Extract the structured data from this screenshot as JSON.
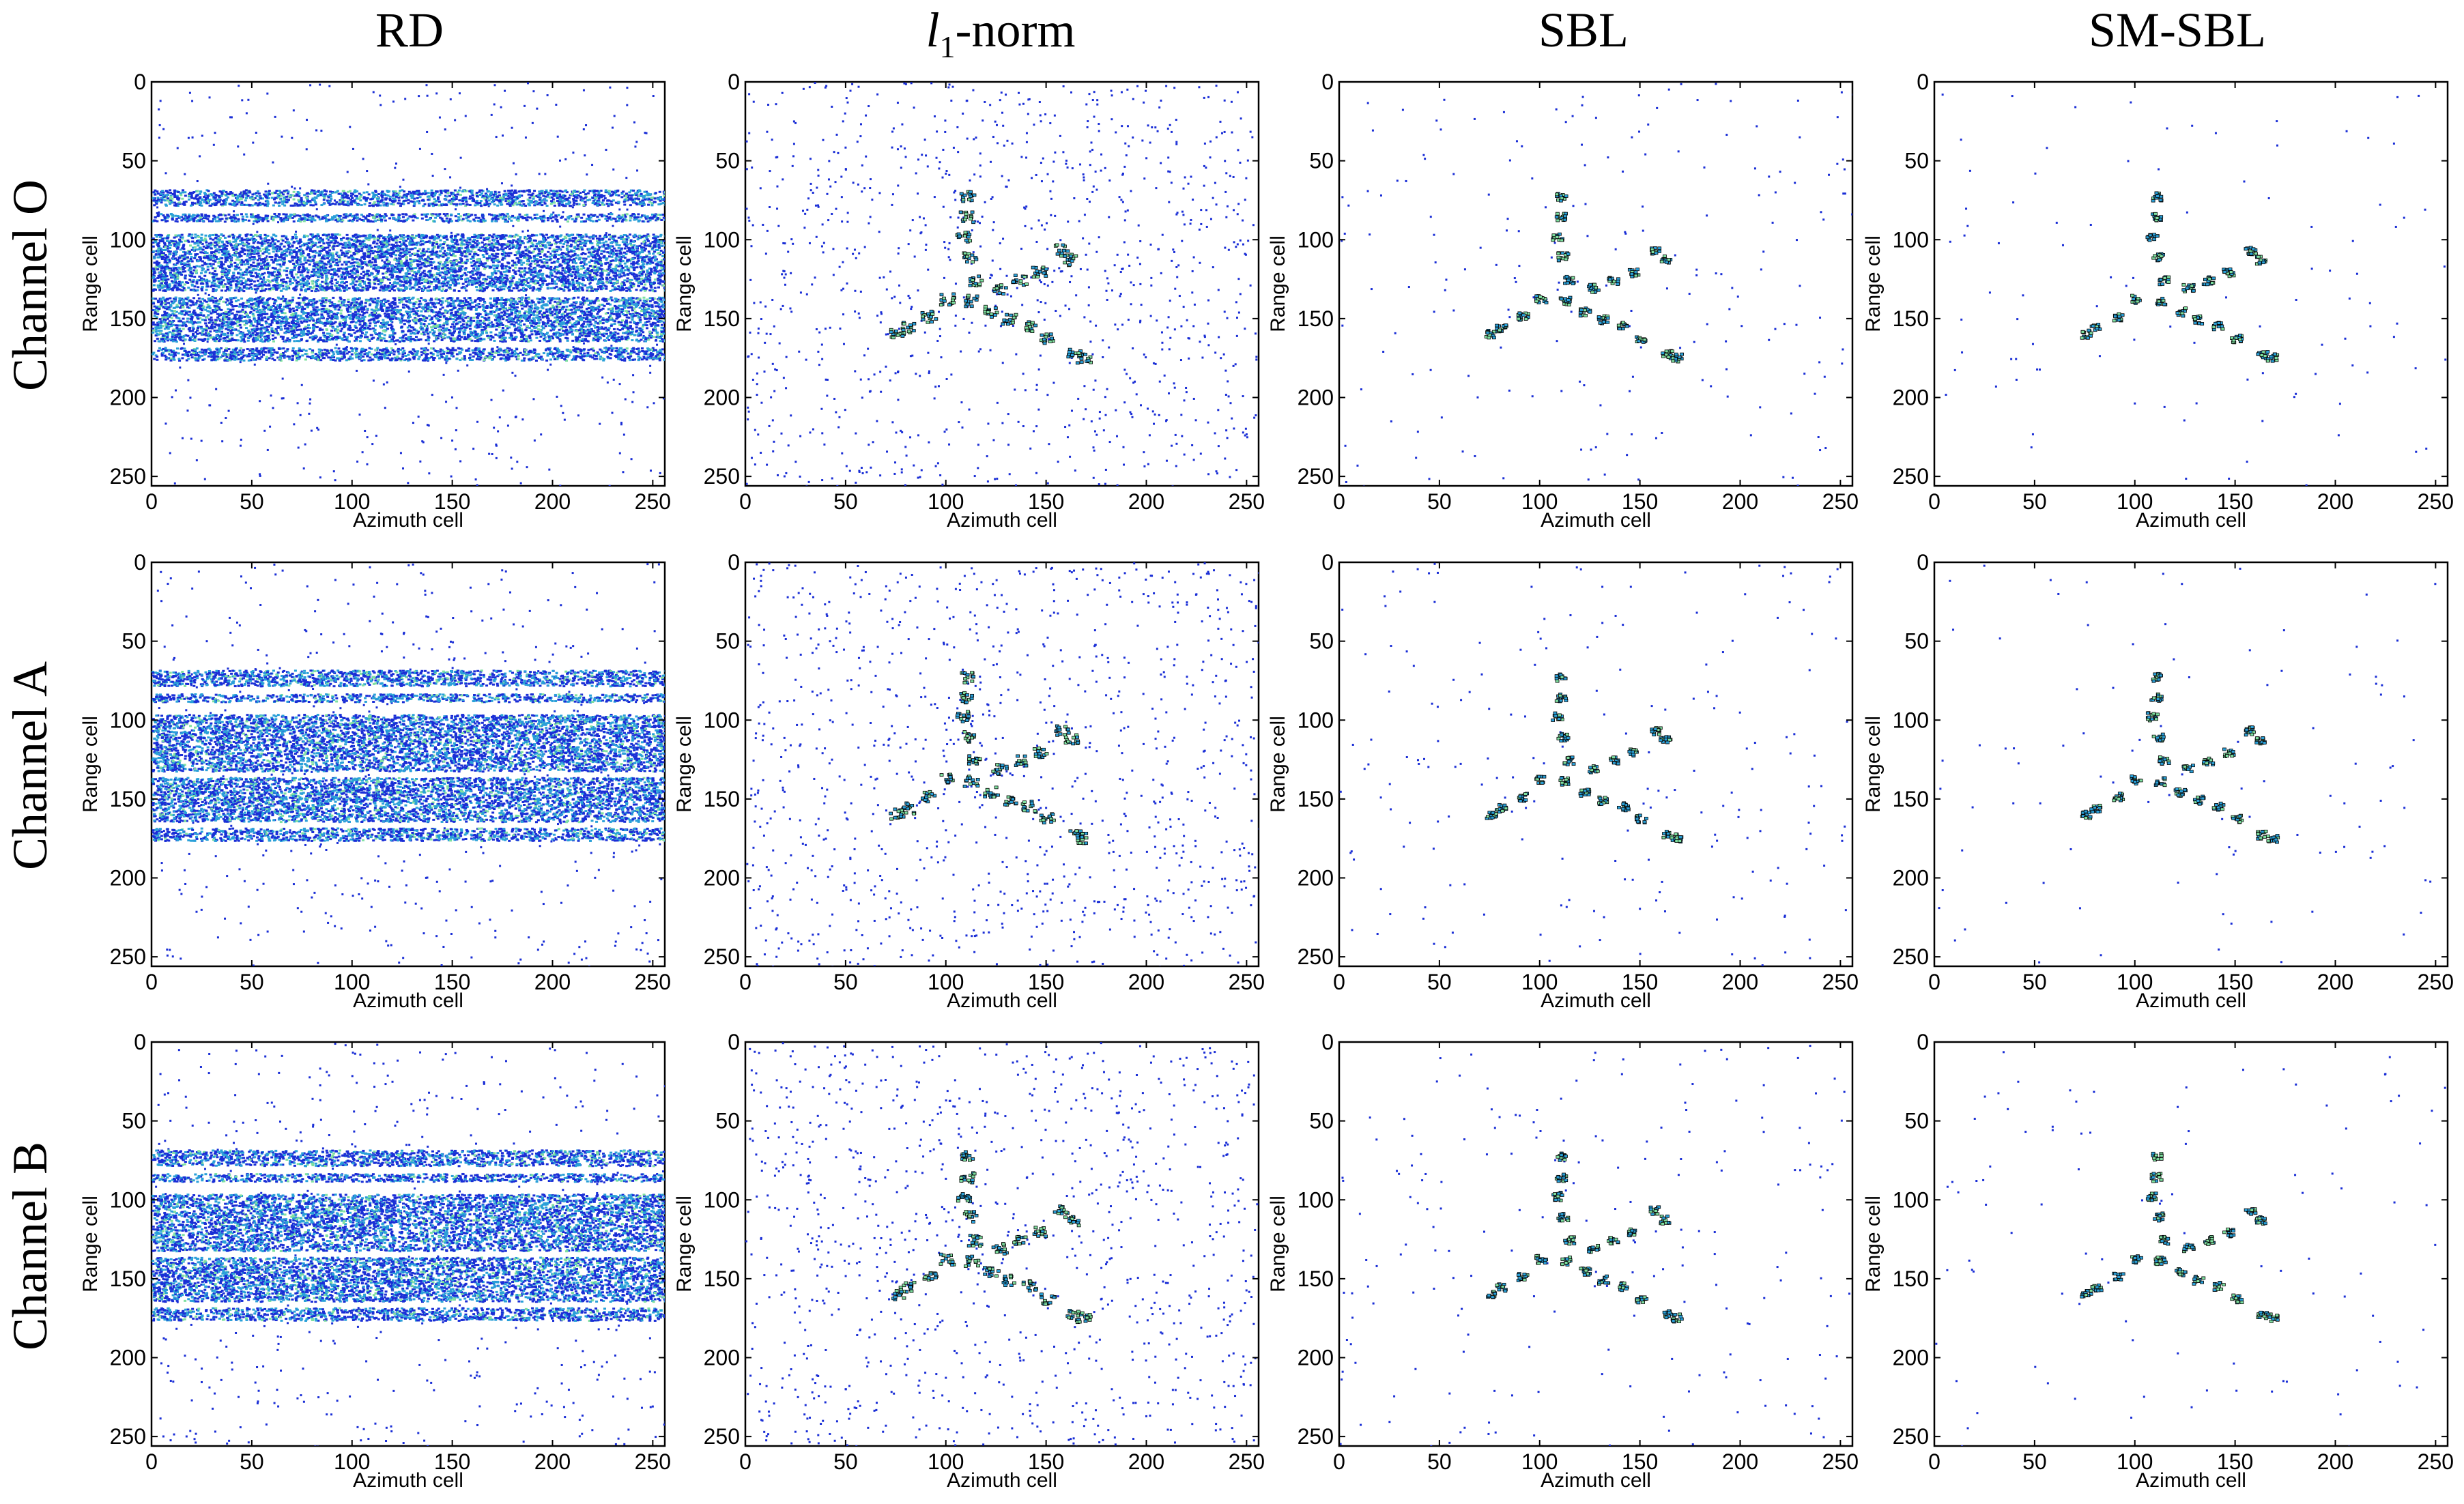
{
  "figure": {
    "columns": [
      {
        "key": "rd",
        "title": "RD"
      },
      {
        "key": "l1",
        "title_italic": "l",
        "title_sub": "1",
        "title_rest": "-norm"
      },
      {
        "key": "sbl",
        "title": "SBL"
      },
      {
        "key": "smsbl",
        "title": "SM-SBL"
      }
    ],
    "rows": [
      "Channel O",
      "Channel A",
      "Channel B"
    ]
  },
  "chart_data": {
    "type": "heatmap",
    "layout": "3x4 grid of ISAR images",
    "xlabel": "Azimuth cell",
    "ylabel": "Range cell",
    "xlim": [
      0,
      256
    ],
    "ylim": [
      256,
      0
    ],
    "xticks": [
      0,
      50,
      100,
      150,
      200,
      250
    ],
    "yticks": [
      0,
      50,
      100,
      150,
      200,
      250
    ],
    "colors": {
      "noise": "#1a2ed6",
      "mid": "#2aa0d8",
      "high": "#7fe0a0",
      "outline": "#000000"
    },
    "target_scatterers": [
      {
        "az": 110,
        "rg": 72
      },
      {
        "az": 110,
        "rg": 85
      },
      {
        "az": 108,
        "rg": 97
      },
      {
        "az": 111,
        "rg": 110
      },
      {
        "az": 114,
        "rg": 125
      },
      {
        "az": 112,
        "rg": 138
      },
      {
        "az": 122,
        "rg": 145
      },
      {
        "az": 131,
        "rg": 150
      },
      {
        "az": 141,
        "rg": 154
      },
      {
        "az": 126,
        "rg": 130
      },
      {
        "az": 136,
        "rg": 125
      },
      {
        "az": 146,
        "rg": 120
      },
      {
        "az": 157,
        "rg": 106
      },
      {
        "az": 162,
        "rg": 112
      },
      {
        "az": 100,
        "rg": 137
      },
      {
        "az": 91,
        "rg": 148
      },
      {
        "az": 80,
        "rg": 155
      },
      {
        "az": 75,
        "rg": 159
      },
      {
        "az": 150,
        "rg": 162
      },
      {
        "az": 163,
        "rg": 172
      },
      {
        "az": 168,
        "rg": 174
      }
    ],
    "rd_bands": [
      [
        68,
        78
      ],
      [
        83,
        88
      ],
      [
        96,
        132
      ],
      [
        136,
        164
      ],
      [
        168,
        176
      ]
    ],
    "panel_noise_density": {
      "rd": 0.03,
      "l1": 0.06,
      "sbl": 0.012,
      "smsbl": 0.006
    }
  }
}
